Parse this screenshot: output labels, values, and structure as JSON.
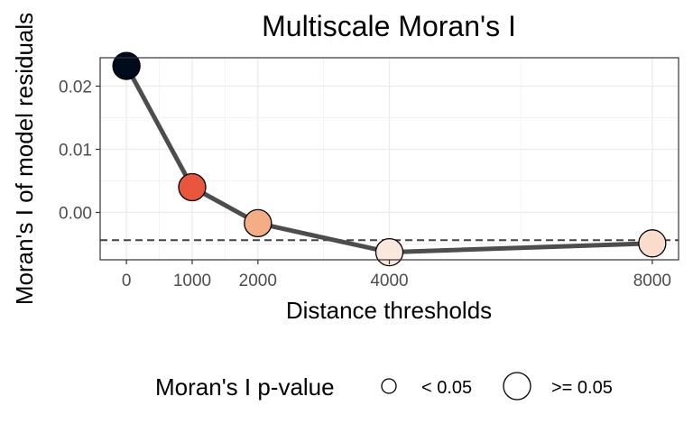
{
  "chart_data": {
    "type": "line",
    "title": "Multiscale Moran's I",
    "xlabel": "Distance thresholds",
    "ylabel": "Moran's I of model residuals",
    "x": [
      0,
      1000,
      2000,
      4000,
      8000
    ],
    "y": [
      0.0232,
      0.004,
      -0.0017,
      -0.0063,
      -0.0049
    ],
    "point_fills": [
      "#000b1c",
      "#e8563d",
      "#f4ad85",
      "#fbe8dc",
      "#f9dccc"
    ],
    "xticks": [
      0,
      1000,
      2000,
      4000,
      8000
    ],
    "xtick_labels": [
      "0",
      "1000",
      "2000",
      "4000",
      "8000"
    ],
    "yticks": [
      -0.0,
      0.01,
      0.02
    ],
    "ytick_labels": [
      "0.00",
      "0.01",
      "0.02"
    ],
    "xlim": [
      -400,
      8400
    ],
    "ylim": [
      -0.0075,
      0.0245
    ],
    "reference_line": {
      "y": -0.0044,
      "style": "dashed",
      "color": "#444444"
    },
    "line_color": "#4d4d4d",
    "grid": true,
    "legend": {
      "title": "Moran's I p-value",
      "position": "bottom",
      "entries": [
        {
          "label": "< 0.05",
          "size": "small"
        },
        {
          "label": ">= 0.05",
          "size": "large"
        }
      ]
    }
  }
}
